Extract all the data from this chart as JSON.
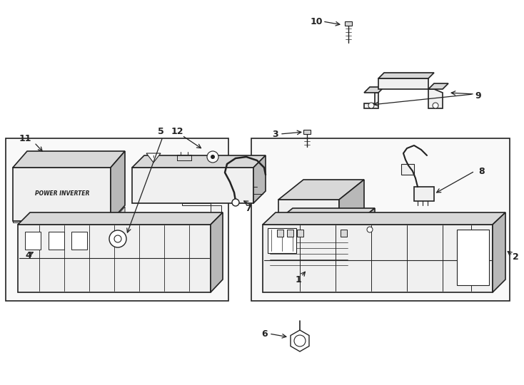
{
  "background_color": "#ffffff",
  "line_color": "#222222",
  "fig_width": 7.34,
  "fig_height": 5.4,
  "dpi": 100,
  "lw_main": 1.2,
  "lw_thin": 0.7,
  "label_fontsize": 9,
  "fill_white": "#ffffff",
  "fill_light": "#f0f0f0",
  "fill_mid": "#d8d8d8",
  "fill_dark": "#b8b8b8"
}
